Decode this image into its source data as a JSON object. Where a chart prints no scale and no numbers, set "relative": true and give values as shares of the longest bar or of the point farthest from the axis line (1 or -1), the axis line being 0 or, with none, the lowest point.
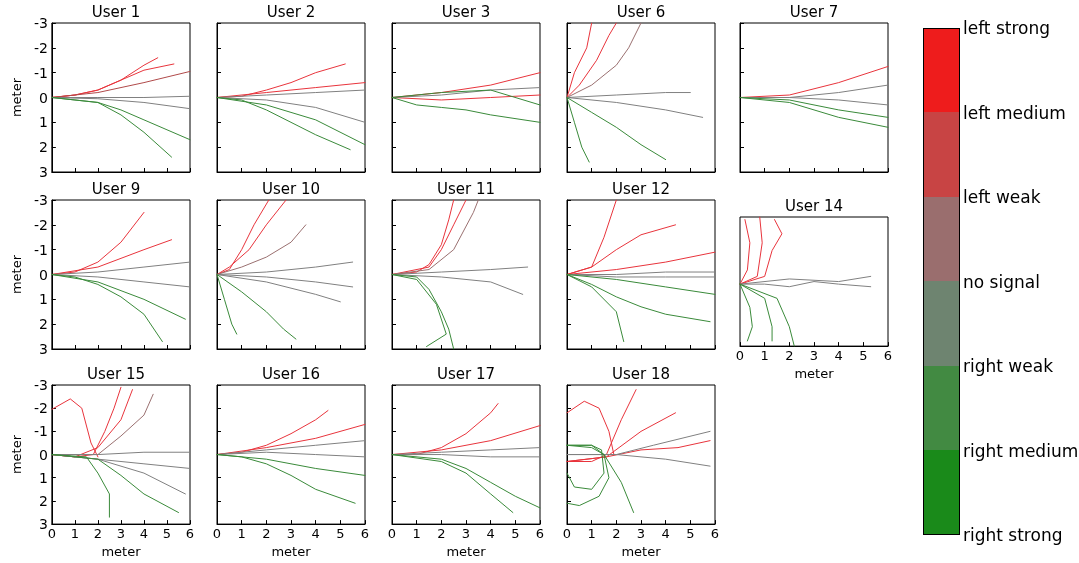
{
  "chart_data": [
    {
      "type": "line",
      "title": "User 1",
      "ylabel": "meter",
      "xlim": [
        0,
        6
      ],
      "ylim": [
        3,
        -3
      ],
      "xticks": [
        0,
        1,
        2,
        3,
        4,
        5,
        6
      ],
      "yticks": [
        -3,
        -2,
        -1,
        0,
        1,
        2,
        3
      ],
      "tick_labels": "y",
      "series": [
        {
          "color": "#e8343c",
          "x": [
            0,
            1,
            2,
            3,
            4,
            4.6
          ],
          "values": [
            0,
            -0.1,
            -0.3,
            -0.7,
            -1.3,
            -1.6
          ]
        },
        {
          "color": "#e8343c",
          "x": [
            0,
            1,
            2,
            3,
            4,
            5.3
          ],
          "values": [
            0,
            -0.1,
            -0.3,
            -0.7,
            -1.1,
            -1.35
          ]
        },
        {
          "color": "#b04a4a",
          "x": [
            0,
            2,
            4,
            6
          ],
          "values": [
            0,
            -0.2,
            -0.6,
            -1.05
          ]
        },
        {
          "color": "#808080",
          "x": [
            0,
            2,
            4,
            6
          ],
          "values": [
            0,
            0,
            0,
            -0.05
          ]
        },
        {
          "color": "#808080",
          "x": [
            0,
            2,
            4,
            6
          ],
          "values": [
            0,
            0.05,
            0.2,
            0.45
          ]
        },
        {
          "color": "#3a8a3a",
          "x": [
            0,
            1,
            2,
            3,
            4,
            5.2
          ],
          "values": [
            0,
            0.1,
            0.2,
            0.7,
            1.4,
            2.4
          ]
        },
        {
          "color": "#3a8a3a",
          "x": [
            0,
            2,
            3,
            4,
            5,
            6
          ],
          "values": [
            0,
            0.2,
            0.5,
            0.9,
            1.3,
            1.7
          ]
        }
      ]
    },
    {
      "type": "line",
      "title": "User 2",
      "xlim": [
        0,
        6
      ],
      "ylim": [
        3,
        -3
      ],
      "xticks": [
        0,
        1,
        2,
        3,
        4,
        5,
        6
      ],
      "yticks": [
        -3,
        -2,
        -1,
        0,
        1,
        2,
        3
      ],
      "tick_labels": false,
      "series": [
        {
          "color": "#e8343c",
          "x": [
            0,
            1,
            2,
            3,
            4,
            5.2
          ],
          "values": [
            0,
            -0.05,
            -0.3,
            -0.6,
            -1,
            -1.35
          ]
        },
        {
          "color": "#e8343c",
          "x": [
            0,
            2,
            4,
            6
          ],
          "values": [
            0,
            -0.2,
            -0.4,
            -0.6
          ]
        },
        {
          "color": "#808080",
          "x": [
            0,
            2,
            4,
            6
          ],
          "values": [
            0,
            -0.1,
            -0.2,
            -0.3
          ]
        },
        {
          "color": "#808080",
          "x": [
            0,
            2,
            4,
            6
          ],
          "values": [
            0,
            0.1,
            0.4,
            1
          ]
        },
        {
          "color": "#3a8a3a",
          "x": [
            0,
            1,
            2,
            3,
            4,
            5.4
          ],
          "values": [
            0,
            0.1,
            0.5,
            1,
            1.5,
            2.1
          ]
        },
        {
          "color": "#3a8a3a",
          "x": [
            0,
            2,
            4,
            6
          ],
          "values": [
            0,
            0.3,
            0.9,
            1.9
          ]
        }
      ]
    },
    {
      "type": "line",
      "title": "User 3",
      "xlim": [
        0,
        6
      ],
      "ylim": [
        3,
        -3
      ],
      "xticks": [
        0,
        1,
        2,
        3,
        4,
        5,
        6
      ],
      "yticks": [
        -3,
        -2,
        -1,
        0,
        1,
        2,
        3
      ],
      "tick_labels": false,
      "series": [
        {
          "color": "#e8343c",
          "x": [
            0,
            2,
            4,
            6
          ],
          "values": [
            0,
            -0.2,
            -0.5,
            -1
          ]
        },
        {
          "color": "#e8343c",
          "x": [
            0,
            2,
            4,
            6
          ],
          "values": [
            0,
            0.1,
            0,
            -0.1
          ]
        },
        {
          "color": "#808080",
          "x": [
            0,
            2,
            4,
            6
          ],
          "values": [
            0,
            -0.1,
            -0.3,
            -0.4
          ]
        },
        {
          "color": "#3a8a3a",
          "x": [
            0,
            2,
            4,
            6
          ],
          "values": [
            0,
            -0.2,
            -0.3,
            0.3
          ]
        },
        {
          "color": "#3a8a3a",
          "x": [
            0,
            1,
            2,
            3,
            4,
            6
          ],
          "values": [
            0,
            0.3,
            0.4,
            0.5,
            0.7,
            1
          ]
        }
      ]
    },
    {
      "type": "line",
      "title": "User 6",
      "xlim": [
        0,
        6
      ],
      "ylim": [
        3,
        -3
      ],
      "xticks": [
        0,
        1,
        2,
        3,
        4,
        5,
        6
      ],
      "yticks": [
        -3,
        -2,
        -1,
        0,
        1,
        2,
        3
      ],
      "tick_labels": false,
      "series": [
        {
          "color": "#e8343c",
          "x": [
            0,
            0.3,
            0.8,
            1
          ],
          "values": [
            0,
            -1,
            -2,
            -3
          ]
        },
        {
          "color": "#e8343c",
          "x": [
            0,
            0.5,
            1.2,
            1.7,
            2
          ],
          "values": [
            0,
            -0.5,
            -1.5,
            -2.5,
            -3
          ]
        },
        {
          "color": "#9a7070",
          "x": [
            0,
            1,
            2,
            2.5,
            3
          ],
          "values": [
            0,
            -0.5,
            -1.3,
            -2,
            -3
          ]
        },
        {
          "color": "#808080",
          "x": [
            0,
            2,
            4,
            5
          ],
          "values": [
            0,
            -0.1,
            -0.2,
            -0.2
          ]
        },
        {
          "color": "#808080",
          "x": [
            0,
            2,
            4,
            5.5
          ],
          "values": [
            0,
            0.2,
            0.5,
            0.8
          ]
        },
        {
          "color": "#3a8a3a",
          "x": [
            0,
            0.3,
            0.6,
            0.9
          ],
          "values": [
            0,
            1,
            2,
            2.6
          ]
        },
        {
          "color": "#3a8a3a",
          "x": [
            0,
            1,
            2,
            3,
            4
          ],
          "values": [
            0,
            0.6,
            1.2,
            1.9,
            2.5
          ]
        }
      ]
    },
    {
      "type": "line",
      "title": "User 7",
      "xlim": [
        0,
        6
      ],
      "ylim": [
        3,
        -3
      ],
      "xticks": [
        0,
        1,
        2,
        3,
        4,
        5,
        6
      ],
      "yticks": [
        -3,
        -2,
        -1,
        0,
        1,
        2,
        3
      ],
      "tick_labels": false,
      "series": [
        {
          "color": "#e8343c",
          "x": [
            0,
            2,
            4,
            6
          ],
          "values": [
            0,
            -0.1,
            -0.6,
            -1.25
          ]
        },
        {
          "color": "#808080",
          "x": [
            0,
            2,
            4,
            6
          ],
          "values": [
            0,
            0,
            -0.2,
            -0.5
          ]
        },
        {
          "color": "#808080",
          "x": [
            0,
            2,
            4,
            6
          ],
          "values": [
            0,
            0,
            0.1,
            0.3
          ]
        },
        {
          "color": "#3a8a3a",
          "x": [
            0,
            2,
            4,
            6
          ],
          "values": [
            0,
            0.1,
            0.5,
            0.8
          ]
        },
        {
          "color": "#3a8a3a",
          "x": [
            0,
            2,
            4,
            6
          ],
          "values": [
            0,
            0.2,
            0.8,
            1.2
          ]
        }
      ]
    },
    {
      "type": "line",
      "title": "User 9",
      "ylabel": "meter",
      "xlim": [
        0,
        6
      ],
      "ylim": [
        3,
        -3
      ],
      "xticks": [
        0,
        1,
        2,
        3,
        4,
        5,
        6
      ],
      "yticks": [
        -3,
        -2,
        -1,
        0,
        1,
        2,
        3
      ],
      "tick_labels": "y",
      "series": [
        {
          "color": "#e8343c",
          "x": [
            0,
            1,
            2,
            3,
            4
          ],
          "values": [
            0,
            -0.1,
            -0.5,
            -1.3,
            -2.5
          ]
        },
        {
          "color": "#e8343c",
          "x": [
            0,
            2,
            4,
            5.2
          ],
          "values": [
            0,
            -0.3,
            -1,
            -1.4
          ]
        },
        {
          "color": "#808080",
          "x": [
            0,
            2,
            4,
            6
          ],
          "values": [
            0,
            -0.1,
            -0.3,
            -0.5
          ]
        },
        {
          "color": "#808080",
          "x": [
            0,
            2,
            4,
            6
          ],
          "values": [
            0,
            0.1,
            0.3,
            0.5
          ]
        },
        {
          "color": "#3a8a3a",
          "x": [
            0,
            1,
            2,
            3,
            4,
            4.8
          ],
          "values": [
            0,
            0.1,
            0.4,
            0.9,
            1.6,
            2.7
          ]
        },
        {
          "color": "#3a8a3a",
          "x": [
            0,
            2,
            4,
            5.8
          ],
          "values": [
            0,
            0.3,
            1,
            1.8
          ]
        }
      ]
    },
    {
      "type": "line",
      "title": "User 10",
      "xlim": [
        0,
        6
      ],
      "ylim": [
        3,
        -3
      ],
      "xticks": [
        0,
        1,
        2,
        3,
        4,
        5,
        6
      ],
      "yticks": [
        -3,
        -2,
        -1,
        0,
        1,
        2,
        3
      ],
      "tick_labels": false,
      "series": [
        {
          "color": "#e8343c",
          "x": [
            0,
            0.5,
            1,
            1.5,
            2.1
          ],
          "values": [
            0,
            -0.2,
            -1,
            -2,
            -3
          ]
        },
        {
          "color": "#e8343c",
          "x": [
            0,
            0.5,
            1.3,
            2,
            2.8
          ],
          "values": [
            0,
            -0.3,
            -1,
            -2,
            -3
          ]
        },
        {
          "color": "#9a7070",
          "x": [
            0,
            1,
            2,
            3,
            3.6
          ],
          "values": [
            0,
            -0.3,
            -0.7,
            -1.3,
            -2
          ]
        },
        {
          "color": "#808080",
          "x": [
            0,
            2,
            4,
            5.5
          ],
          "values": [
            0,
            -0.1,
            -0.3,
            -0.5
          ]
        },
        {
          "color": "#808080",
          "x": [
            0,
            2,
            4,
            5.5
          ],
          "values": [
            0,
            0.1,
            0.3,
            0.5
          ]
        },
        {
          "color": "#808080",
          "x": [
            0,
            2,
            4,
            5
          ],
          "values": [
            0,
            0.3,
            0.8,
            1.1
          ]
        },
        {
          "color": "#3a8a3a",
          "x": [
            0,
            0.3,
            0.6,
            0.8
          ],
          "values": [
            0,
            1,
            2,
            2.4
          ]
        },
        {
          "color": "#3a8a3a",
          "x": [
            0,
            1,
            2,
            2.7,
            3.2
          ],
          "values": [
            0,
            0.7,
            1.5,
            2.2,
            2.6
          ]
        }
      ]
    },
    {
      "type": "line",
      "title": "User 11",
      "xlim": [
        0,
        6
      ],
      "ylim": [
        3,
        -3
      ],
      "xticks": [
        0,
        1,
        2,
        3,
        4,
        5,
        6
      ],
      "yticks": [
        -3,
        -2,
        -1,
        0,
        1,
        2,
        3
      ],
      "tick_labels": false,
      "series": [
        {
          "color": "#e8343c",
          "x": [
            0,
            1,
            1.5,
            2,
            2.3,
            2.5
          ],
          "values": [
            0,
            -0.1,
            -0.4,
            -1.2,
            -2.2,
            -3
          ]
        },
        {
          "color": "#e8343c",
          "x": [
            0,
            1.5,
            2,
            2.5,
            3
          ],
          "values": [
            0,
            -0.3,
            -1,
            -2,
            -3
          ]
        },
        {
          "color": "#9a7070",
          "x": [
            0,
            1.5,
            2.5,
            3.3,
            3.5
          ],
          "values": [
            0,
            -0.2,
            -1,
            -2.5,
            -3
          ]
        },
        {
          "color": "#808080",
          "x": [
            0,
            2,
            4,
            5.5
          ],
          "values": [
            0,
            -0.1,
            -0.2,
            -0.3
          ]
        },
        {
          "color": "#808080",
          "x": [
            0,
            2,
            4,
            5.3
          ],
          "values": [
            0,
            0.1,
            0.3,
            0.8
          ]
        },
        {
          "color": "#3a8a3a",
          "x": [
            0,
            1,
            1.5,
            2,
            2.3,
            2.5
          ],
          "values": [
            0,
            0.1,
            0.6,
            1.5,
            2.2,
            3
          ]
        },
        {
          "color": "#3a8a3a",
          "x": [
            0,
            1,
            1.8,
            2.2,
            1.4
          ],
          "values": [
            0,
            0.2,
            1.2,
            2.4,
            2.9
          ]
        }
      ]
    },
    {
      "type": "line",
      "title": "User 12",
      "xlim": [
        0,
        6
      ],
      "ylim": [
        3,
        -3
      ],
      "xticks": [
        0,
        1,
        2,
        3,
        4,
        5,
        6
      ],
      "yticks": [
        -3,
        -2,
        -1,
        0,
        1,
        2,
        3
      ],
      "tick_labels": false,
      "series": [
        {
          "color": "#e8343c",
          "x": [
            0,
            1,
            1.5,
            2
          ],
          "values": [
            0,
            -0.3,
            -1.5,
            -3
          ]
        },
        {
          "color": "#e8343c",
          "x": [
            0,
            1,
            2,
            3,
            4.4
          ],
          "values": [
            0,
            -0.3,
            -1,
            -1.6,
            -2
          ]
        },
        {
          "color": "#e8343c",
          "x": [
            0,
            2,
            4,
            6
          ],
          "values": [
            0,
            -0.2,
            -0.5,
            -0.9
          ]
        },
        {
          "color": "#808080",
          "x": [
            0,
            2,
            4,
            6
          ],
          "values": [
            0,
            0,
            -0.1,
            -0.1
          ]
        },
        {
          "color": "#808080",
          "x": [
            0,
            2,
            4,
            6
          ],
          "values": [
            0,
            0.1,
            0.1,
            0.1
          ]
        },
        {
          "color": "#3a8a3a",
          "x": [
            0,
            1,
            2,
            2.3
          ],
          "values": [
            0,
            0.5,
            1.5,
            2.7
          ]
        },
        {
          "color": "#3a8a3a",
          "x": [
            0,
            1,
            2,
            3,
            4,
            5.8
          ],
          "values": [
            0,
            0.4,
            0.9,
            1.3,
            1.6,
            1.9
          ]
        },
        {
          "color": "#3a8a3a",
          "x": [
            0,
            2,
            4,
            6
          ],
          "values": [
            0,
            0.2,
            0.5,
            0.8
          ]
        }
      ]
    },
    {
      "type": "line",
      "title": "User 14",
      "xlabel": "meter",
      "relative": true,
      "xlim": [
        0,
        6
      ],
      "xticks": [
        0,
        1,
        2,
        3,
        4,
        5,
        6
      ],
      "tick_labels": "x",
      "series": [
        {
          "color": "#e8343c",
          "x": [
            0,
            0.3,
            0.4,
            0.2
          ],
          "values": [
            0.48,
            0.59,
            0.8,
            0.98
          ]
        },
        {
          "color": "#e8343c",
          "x": [
            0,
            0.7,
            0.9,
            0.8
          ],
          "values": [
            0.48,
            0.54,
            0.8,
            1
          ]
        },
        {
          "color": "#e8343c",
          "x": [
            0,
            1,
            1.3,
            1.7,
            1.4
          ],
          "values": [
            0.48,
            0.54,
            0.74,
            0.87,
            0.98
          ]
        },
        {
          "color": "#808080",
          "x": [
            0,
            1,
            2,
            3,
            4,
            5.3
          ],
          "values": [
            0.48,
            0.48,
            0.46,
            0.5,
            0.48,
            0.46
          ]
        },
        {
          "color": "#808080",
          "x": [
            0,
            2,
            4,
            5.3
          ],
          "values": [
            0.48,
            0.52,
            0.5,
            0.54
          ]
        },
        {
          "color": "#3a8a3a",
          "x": [
            0,
            0.4,
            0.5,
            0.3
          ],
          "values": [
            0.48,
            0.3,
            0.15,
            0.04
          ]
        },
        {
          "color": "#3a8a3a",
          "x": [
            0,
            1,
            1.3,
            1.3
          ],
          "values": [
            0.48,
            0.37,
            0.15,
            0.04
          ]
        },
        {
          "color": "#3a8a3a",
          "x": [
            0,
            1.5,
            2,
            2.2
          ],
          "values": [
            0.48,
            0.37,
            0.15,
            0
          ]
        }
      ]
    },
    {
      "type": "line",
      "title": "User 15",
      "xlabel": "meter",
      "ylabel": "meter",
      "xlim": [
        0,
        6
      ],
      "ylim": [
        3,
        -3
      ],
      "xticks": [
        0,
        1,
        2,
        3,
        4,
        5,
        6
      ],
      "yticks": [
        -3,
        -2,
        -1,
        0,
        1,
        2,
        3
      ],
      "series": [
        {
          "color": "#e8343c",
          "x": [
            0,
            0.8,
            1.3,
            1.7,
            2
          ],
          "values": [
            -1.95,
            -2.4,
            -2,
            -0.5,
            0.1
          ]
        },
        {
          "color": "#e8343c",
          "x": [
            0,
            1,
            1.8,
            2.3,
            2.7,
            3
          ],
          "values": [
            0,
            0.1,
            0,
            -1,
            -2,
            -2.9
          ]
        },
        {
          "color": "#e8343c",
          "x": [
            0,
            1,
            2,
            3,
            3.5
          ],
          "values": [
            0,
            0.1,
            -0.3,
            -1.5,
            -2.8
          ]
        },
        {
          "color": "#9a7070",
          "x": [
            0,
            2,
            3,
            4,
            4.4
          ],
          "values": [
            0,
            0,
            -0.8,
            -1.7,
            -2.6
          ]
        },
        {
          "color": "#808080",
          "x": [
            0,
            2,
            4,
            6
          ],
          "values": [
            0,
            0,
            -0.1,
            -0.1
          ]
        },
        {
          "color": "#808080",
          "x": [
            0,
            2,
            4,
            6
          ],
          "values": [
            0,
            0.2,
            0.4,
            0.6
          ]
        },
        {
          "color": "#808080",
          "x": [
            0,
            2,
            4,
            5.8
          ],
          "values": [
            0,
            0.2,
            0.8,
            1.7
          ]
        },
        {
          "color": "#3a8a3a",
          "x": [
            0,
            1.5,
            2,
            2.5,
            2.5
          ],
          "values": [
            0,
            0.1,
            0.8,
            1.7,
            2.7
          ]
        },
        {
          "color": "#3a8a3a",
          "x": [
            0,
            2,
            3,
            4,
            5.5
          ],
          "values": [
            0,
            0.2,
            0.9,
            1.7,
            2.5
          ]
        }
      ]
    },
    {
      "type": "line",
      "title": "User 16",
      "xlabel": "meter",
      "xlim": [
        0,
        6
      ],
      "ylim": [
        3,
        -3
      ],
      "xticks": [
        0,
        1,
        2,
        3,
        4,
        5,
        6
      ],
      "yticks": [
        -3,
        -2,
        -1,
        0,
        1,
        2,
        3
      ],
      "tick_labels": "x",
      "series": [
        {
          "color": "#e8343c",
          "x": [
            0,
            1,
            2,
            3,
            4,
            4.5
          ],
          "values": [
            0,
            -0.1,
            -0.4,
            -0.9,
            -1.5,
            -1.9
          ]
        },
        {
          "color": "#e8343c",
          "x": [
            0,
            2,
            4,
            6
          ],
          "values": [
            0,
            -0.3,
            -0.7,
            -1.3
          ]
        },
        {
          "color": "#808080",
          "x": [
            0,
            2,
            4,
            6
          ],
          "values": [
            0,
            -0.2,
            -0.4,
            -0.6
          ]
        },
        {
          "color": "#808080",
          "x": [
            0,
            2,
            4,
            6
          ],
          "values": [
            0,
            -0.1,
            0,
            0.1
          ]
        },
        {
          "color": "#3a8a3a",
          "x": [
            0,
            1,
            2,
            3,
            4,
            5.6
          ],
          "values": [
            0,
            0.1,
            0.4,
            0.9,
            1.5,
            2.1
          ]
        },
        {
          "color": "#3a8a3a",
          "x": [
            0,
            2,
            4,
            6
          ],
          "values": [
            0,
            0.2,
            0.6,
            0.9
          ]
        }
      ]
    },
    {
      "type": "line",
      "title": "User 17",
      "xlabel": "meter",
      "xlim": [
        0,
        6
      ],
      "ylim": [
        3,
        -3
      ],
      "xticks": [
        0,
        1,
        2,
        3,
        4,
        5,
        6
      ],
      "yticks": [
        -3,
        -2,
        -1,
        0,
        1,
        2,
        3
      ],
      "tick_labels": "x",
      "series": [
        {
          "color": "#e8343c",
          "x": [
            0,
            1,
            2,
            3,
            4,
            4.3
          ],
          "values": [
            0,
            0,
            -0.3,
            -0.9,
            -1.8,
            -2.2
          ]
        },
        {
          "color": "#e8343c",
          "x": [
            0,
            2,
            4,
            6
          ],
          "values": [
            0,
            -0.2,
            -0.6,
            -1.25
          ]
        },
        {
          "color": "#808080",
          "x": [
            0,
            2,
            4,
            6
          ],
          "values": [
            0,
            -0.1,
            -0.2,
            -0.3
          ]
        },
        {
          "color": "#808080",
          "x": [
            0,
            2,
            4,
            6
          ],
          "values": [
            0,
            0,
            0.1,
            0.1
          ]
        },
        {
          "color": "#3a8a3a",
          "x": [
            0,
            2,
            3,
            4,
            5,
            6
          ],
          "values": [
            0,
            0.2,
            0.6,
            1.2,
            1.8,
            2.3
          ]
        },
        {
          "color": "#3a8a3a",
          "x": [
            0,
            2,
            3,
            4,
            4.9
          ],
          "values": [
            0,
            0.3,
            0.8,
            1.7,
            2.5
          ]
        }
      ]
    },
    {
      "type": "line",
      "title": "User 18",
      "xlabel": "meter",
      "xlim": [
        0,
        6
      ],
      "ylim": [
        3,
        -3
      ],
      "xticks": [
        0,
        1,
        2,
        3,
        4,
        5,
        6
      ],
      "yticks": [
        -3,
        -2,
        -1,
        0,
        1,
        2,
        3
      ],
      "tick_labels": "x",
      "series": [
        {
          "color": "#e8343c",
          "x": [
            0,
            0.7,
            1.3,
            1.7,
            1.9
          ],
          "values": [
            -1.8,
            -2.3,
            -2,
            -1,
            0
          ]
        },
        {
          "color": "#e8343c",
          "x": [
            0,
            1,
            1.6,
            2.2,
            2.8
          ],
          "values": [
            0.3,
            0.3,
            0,
            -1.5,
            -2.8
          ]
        },
        {
          "color": "#e8343c",
          "x": [
            0,
            1.6,
            3,
            4.4
          ],
          "values": [
            0.3,
            0.1,
            -1,
            -1.8
          ]
        },
        {
          "color": "#e8343c",
          "x": [
            0,
            1.6,
            3,
            4.5,
            5.8
          ],
          "values": [
            0.3,
            0.1,
            -0.2,
            -0.3,
            -0.6
          ]
        },
        {
          "color": "#808080",
          "x": [
            0,
            2,
            4,
            5.8
          ],
          "values": [
            0,
            0,
            0.2,
            0.5
          ]
        },
        {
          "color": "#808080",
          "x": [
            0,
            2,
            3.5,
            5.8
          ],
          "values": [
            0,
            0,
            -0.4,
            -1
          ]
        },
        {
          "color": "#3a8a3a",
          "x": [
            0,
            1,
            1.4,
            1.5,
            1,
            0.3,
            0
          ],
          "values": [
            -0.4,
            -0.4,
            -0.2,
            0.8,
            1.5,
            1.4,
            0.8
          ]
        },
        {
          "color": "#3a8a3a",
          "x": [
            0,
            1,
            1.5,
            1.7,
            1.3,
            0.5,
            0
          ],
          "values": [
            -0.4,
            -0.4,
            0,
            1,
            1.8,
            2.2,
            2.1
          ]
        },
        {
          "color": "#3a8a3a",
          "x": [
            0,
            1,
            1.5,
            2.2,
            2.7
          ],
          "values": [
            -0.4,
            -0.3,
            0,
            1.2,
            2.5
          ]
        }
      ]
    },
    {
      "type": "other",
      "categories": [
        "left strong",
        "left medium",
        "left weak",
        "no signal",
        "right weak",
        "right medium",
        "right strong"
      ],
      "colors": [
        "#ee1c1c",
        "#c84444",
        "#9a6e6e",
        "#6e8470",
        "#428a42",
        "#1a8a1a"
      ]
    }
  ]
}
